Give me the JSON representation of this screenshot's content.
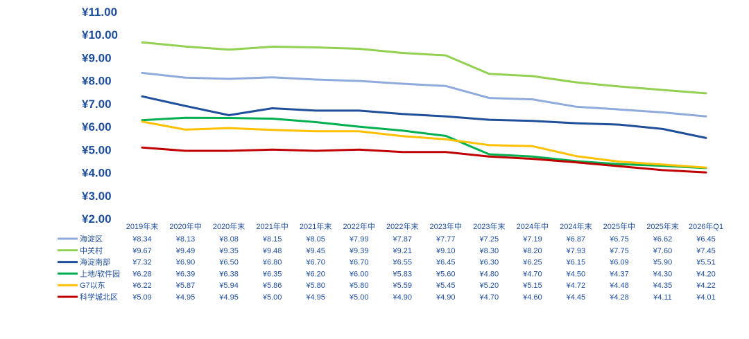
{
  "chart_data": {
    "type": "line",
    "title": "",
    "xlabel": "",
    "ylabel": "",
    "ylim": [
      2,
      11
    ],
    "yticks": [
      2,
      3,
      4,
      5,
      6,
      7,
      8,
      9,
      10,
      11
    ],
    "ytick_labels": [
      "¥2.00",
      "¥3.00",
      "¥4.00",
      "¥5.00",
      "¥6.00",
      "¥7.00",
      "¥8.00",
      "¥9.00",
      "¥10.00",
      "¥11.00"
    ],
    "grid": false,
    "legend_placement": "bottom-left data table",
    "categories": [
      "2019年末",
      "2020年中",
      "2020年末",
      "2021年中",
      "2021年末",
      "2022年中",
      "2022年末",
      "2023年中",
      "2023年末",
      "2024年中",
      "2024年末",
      "2025年中",
      "2025年末",
      "2026年Q1"
    ],
    "series": [
      {
        "name": "海淀区",
        "color": "#8faadc",
        "values": [
          8.34,
          8.13,
          8.08,
          8.15,
          8.05,
          7.99,
          7.87,
          7.77,
          7.25,
          7.19,
          6.87,
          6.75,
          6.62,
          6.45
        ],
        "labels": [
          "¥8.34",
          "¥8.13",
          "¥8.08",
          "¥8.15",
          "¥8.05",
          "¥7.99",
          "¥7.87",
          "¥7.77",
          "¥7.25",
          "¥7.19",
          "¥6.87",
          "¥6.75",
          "¥6.62",
          "¥6.45"
        ]
      },
      {
        "name": "中关村",
        "color": "#92d050",
        "values": [
          9.67,
          9.49,
          9.35,
          9.48,
          9.45,
          9.39,
          9.21,
          9.1,
          8.3,
          8.2,
          7.93,
          7.75,
          7.6,
          7.45
        ],
        "labels": [
          "¥9.67",
          "¥9.49",
          "¥9.35",
          "¥9.48",
          "¥9.45",
          "¥9.39",
          "¥9.21",
          "¥9.10",
          "¥8.30",
          "¥8.20",
          "¥7.93",
          "¥7.75",
          "¥7.60",
          "¥7.45"
        ]
      },
      {
        "name": "海淀南部",
        "color": "#1f4e9b",
        "values": [
          7.32,
          6.9,
          6.5,
          6.8,
          6.7,
          6.7,
          6.55,
          6.45,
          6.3,
          6.25,
          6.15,
          6.09,
          5.9,
          5.51
        ],
        "labels": [
          "¥7.32",
          "¥6.90",
          "¥6.50",
          "¥6.80",
          "¥6.70",
          "¥6.70",
          "¥6.55",
          "¥6.45",
          "¥6.30",
          "¥6.25",
          "¥6.15",
          "¥6.09",
          "¥5.90",
          "¥5.51"
        ]
      },
      {
        "name": "上地/软件园",
        "color": "#00b050",
        "values": [
          6.28,
          6.39,
          6.38,
          6.35,
          6.2,
          6.0,
          5.83,
          5.6,
          4.8,
          4.7,
          4.5,
          4.37,
          4.3,
          4.2
        ],
        "labels": [
          "¥6.28",
          "¥6.39",
          "¥6.38",
          "¥6.35",
          "¥6.20",
          "¥6.00",
          "¥5.83",
          "¥5.60",
          "¥4.80",
          "¥4.70",
          "¥4.50",
          "¥4.37",
          "¥4.30",
          "¥4.20"
        ]
      },
      {
        "name": "G7以东",
        "color": "#ffc000",
        "values": [
          6.22,
          5.87,
          5.94,
          5.86,
          5.8,
          5.8,
          5.59,
          5.45,
          5.2,
          5.15,
          4.72,
          4.48,
          4.35,
          4.22
        ],
        "labels": [
          "¥6.22",
          "¥5.87",
          "¥5.94",
          "¥5.86",
          "¥5.80",
          "¥5.80",
          "¥5.59",
          "¥5.45",
          "¥5.20",
          "¥5.15",
          "¥4.72",
          "¥4.48",
          "¥4.35",
          "¥4.22"
        ]
      },
      {
        "name": "科学城北区",
        "color": "#c00000",
        "values": [
          5.09,
          4.95,
          4.95,
          5.0,
          4.95,
          5.0,
          4.9,
          4.9,
          4.7,
          4.6,
          4.45,
          4.28,
          4.11,
          4.01
        ],
        "labels": [
          "¥5.09",
          "¥4.95",
          "¥4.95",
          "¥5.00",
          "¥4.95",
          "¥5.00",
          "¥4.90",
          "¥4.90",
          "¥4.70",
          "¥4.60",
          "¥4.45",
          "¥4.28",
          "¥4.11",
          "¥4.01"
        ]
      }
    ]
  }
}
